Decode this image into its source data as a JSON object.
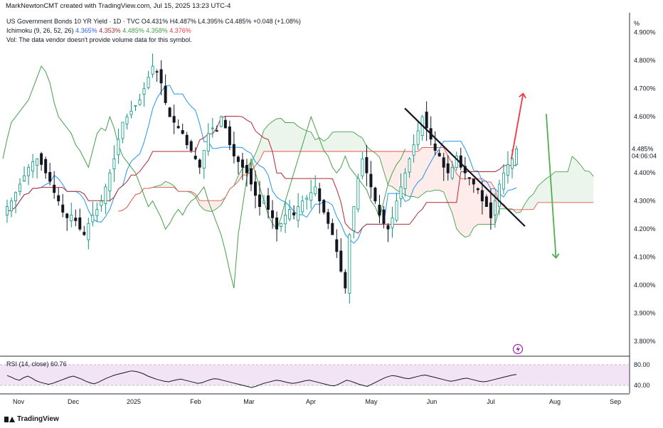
{
  "header": {
    "attribution": "MarkNewtonCMT created with TradingView.com, Jul 15, 2025 13:23 UTC-4"
  },
  "legend": {
    "symbol": "US Government Bonds 10 YR Yield · 1D · TVC",
    "ohlc": "O4.431% H4.487% L4.395% C4.485% +0.048 (+1.08%)",
    "ichimoku_label": "Ichimoku (9, 26, 52, 26)",
    "ichimoku_values": [
      "4.365%",
      "4.353%",
      "4.485%",
      "4.358%",
      "4.376%"
    ],
    "volume_note": "Vol: The data vendor doesn't provide volume data for this symbol."
  },
  "rsi": {
    "label": "RSI (14, close)",
    "value": "60.76",
    "ticks": [
      "80.00",
      "40.00"
    ],
    "series": [
      59,
      56,
      52,
      50,
      55,
      58,
      54,
      49,
      46,
      44,
      42,
      44,
      47,
      50,
      53,
      56,
      58,
      55,
      52,
      48,
      45,
      43,
      46,
      50,
      54,
      57,
      60,
      62,
      64,
      66,
      68,
      67,
      65,
      62,
      58,
      55,
      52,
      50,
      48,
      47,
      49,
      51,
      52,
      50,
      48,
      46,
      44,
      45,
      48,
      51,
      53,
      52,
      50,
      48,
      46,
      44,
      42,
      40,
      38,
      36,
      38,
      41,
      44,
      46,
      48,
      50,
      49,
      47,
      45,
      44,
      45,
      47,
      49,
      50,
      48,
      46,
      44,
      42,
      40,
      39,
      42,
      46,
      50,
      48,
      45,
      42,
      40,
      38,
      42,
      46,
      50,
      54,
      57,
      59,
      58,
      56,
      54,
      53,
      55,
      57,
      59,
      60,
      58,
      56,
      54,
      52,
      50,
      48,
      49,
      51,
      53,
      54,
      52,
      50,
      48,
      47,
      48,
      50,
      52,
      54,
      56,
      58,
      60,
      61
    ]
  },
  "price_axis": {
    "unit": "%",
    "ticks": [
      "4.900%",
      "4.800%",
      "4.700%",
      "4.600%",
      "4.400%",
      "4.300%",
      "4.200%",
      "4.100%",
      "4.000%",
      "3.900%",
      "3.800%"
    ],
    "last_price": "4.485%",
    "countdown": "04:06:04"
  },
  "time_axis": [
    "Nov",
    "Dec",
    "2025",
    "Feb",
    "Mar",
    "Apr",
    "May",
    "Jun",
    "Jul",
    "Aug",
    "Sep"
  ],
  "footer": {
    "brand": "TradingView"
  },
  "colors": {
    "up": "#089981",
    "down": "#131722",
    "tenkan": "#2196f3",
    "kijun": "#b22833",
    "span_a": "#43a047",
    "span_b": "#ef5350",
    "lagging": "#43a047",
    "annotation_red": "#f23645",
    "annotation_green": "#4caf50",
    "rsi_fill": "#e1bee7",
    "price_badge": "#ffffff"
  },
  "chart_data": {
    "type": "candlestick",
    "title": "US Government Bonds 10 YR Yield · 1D · TVC",
    "ylabel": "%",
    "ylim": [
      3.75,
      4.97
    ],
    "x_period": [
      "2024-10-28",
      "2025-09-15"
    ],
    "candles_close_approx": [
      4.28,
      4.3,
      4.33,
      4.36,
      4.39,
      4.42,
      4.44,
      4.45,
      4.43,
      4.4,
      4.37,
      4.33,
      4.3,
      4.26,
      4.24,
      4.25,
      4.23,
      4.2,
      4.18,
      4.22,
      4.25,
      4.27,
      4.3,
      4.35,
      4.4,
      4.45,
      4.52,
      4.58,
      4.6,
      4.62,
      4.64,
      4.66,
      4.7,
      4.74,
      4.78,
      4.76,
      4.72,
      4.65,
      4.6,
      4.58,
      4.56,
      4.54,
      4.5,
      4.48,
      4.45,
      4.42,
      4.48,
      4.54,
      4.56,
      4.55,
      4.6,
      4.56,
      4.5,
      4.46,
      4.44,
      4.42,
      4.4,
      4.36,
      4.32,
      4.28,
      4.3,
      4.27,
      4.24,
      4.2,
      4.22,
      4.25,
      4.27,
      4.25,
      4.28,
      4.3,
      4.31,
      4.33,
      4.35,
      4.3,
      4.26,
      4.22,
      4.18,
      4.12,
      4.05,
      3.99,
      4.18,
      4.28,
      4.38,
      4.45,
      4.4,
      4.35,
      4.3,
      4.25,
      4.22,
      4.2,
      4.24,
      4.3,
      4.35,
      4.4,
      4.45,
      4.5,
      4.55,
      4.6,
      4.56,
      4.52,
      4.48,
      4.46,
      4.42,
      4.4,
      4.42,
      4.46,
      4.42,
      4.4,
      4.38,
      4.36,
      4.34,
      4.3,
      4.28,
      4.24,
      4.3,
      4.36,
      4.4,
      4.43,
      4.45,
      4.485
    ],
    "annotations": [
      {
        "type": "trendline",
        "from": [
          "2025-05-22",
          4.63
        ],
        "to": [
          "2025-07-23",
          4.21
        ],
        "color": "#131722"
      },
      {
        "type": "arrow",
        "from": [
          "2025-07-16",
          4.45
        ],
        "to": [
          "2025-07-22",
          4.68
        ],
        "color": "#f23645"
      },
      {
        "type": "arrow",
        "from": [
          "2025-08-03",
          4.61
        ],
        "to": [
          "2025-08-08",
          4.1
        ],
        "color": "#4caf50"
      }
    ]
  }
}
